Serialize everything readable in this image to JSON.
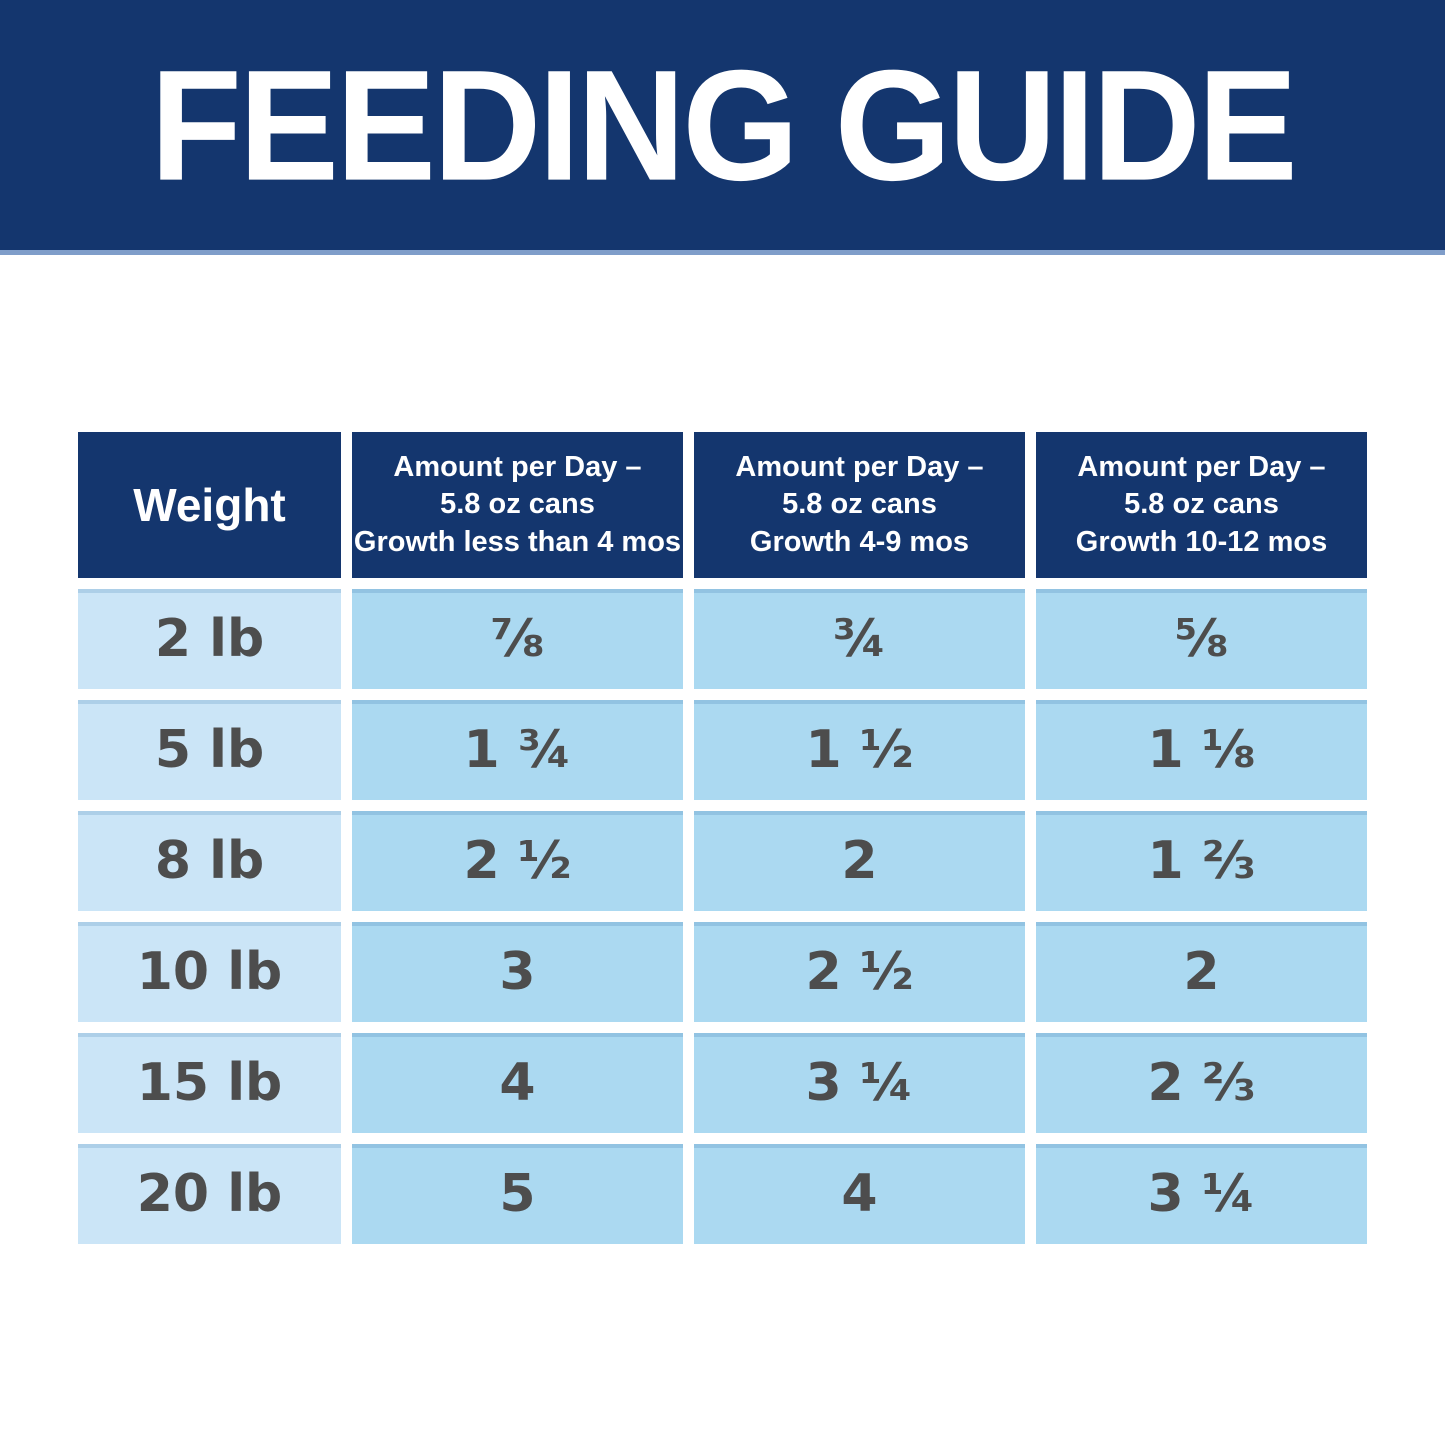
{
  "banner": {
    "title": "FEEDING GUIDE"
  },
  "colors": {
    "navy": "#14366E",
    "banner_edge": "#7F9DC9",
    "weight_cell_blue": "#CBE5F7",
    "value_cell_blue": "#ABD9F1",
    "cell_text_gray": "#4d4d4d",
    "header_text": "#ffffff",
    "background": "#ffffff"
  },
  "table": {
    "columns": [
      "Weight",
      "Amount per Day –\n5.8 oz cans\nGrowth less than 4 mos",
      "Amount per Day –\n5.8 oz cans\nGrowth 4-9 mos",
      "Amount per Day –\n5.8 oz cans\nGrowth 10-12 mos"
    ],
    "rows": [
      {
        "weight": "2 lb",
        "values": [
          "⅞",
          "¾",
          "⅝"
        ]
      },
      {
        "weight": "5 lb",
        "values": [
          "1 ¾",
          "1 ½",
          "1 ⅛"
        ]
      },
      {
        "weight": "8 lb",
        "values": [
          "2 ½",
          "2",
          "1 ⅔"
        ]
      },
      {
        "weight": "10 lb",
        "values": [
          "3",
          "2 ½",
          "2"
        ]
      },
      {
        "weight": "15 lb",
        "values": [
          "4",
          "3 ¼",
          "2 ⅔"
        ]
      },
      {
        "weight": "20 lb",
        "values": [
          "5",
          "4",
          "3 ¼"
        ]
      }
    ]
  },
  "chart_data": {
    "type": "table",
    "title": "FEEDING GUIDE",
    "columns": [
      "Weight",
      "Amount per Day – 5.8 oz cans, Growth less than 4 mos",
      "Amount per Day – 5.8 oz cans, Growth 4-9 mos",
      "Amount per Day – 5.8 oz cans, Growth 10-12 mos"
    ],
    "rows": [
      [
        "2 lb",
        "7/8",
        "3/4",
        "5/8"
      ],
      [
        "5 lb",
        "1 3/4",
        "1 1/2",
        "1 1/8"
      ],
      [
        "8 lb",
        "2 1/2",
        "2",
        "1 2/3"
      ],
      [
        "10 lb",
        "3",
        "2 1/2",
        "2"
      ],
      [
        "15 lb",
        "4",
        "3 1/4",
        "2 2/3"
      ],
      [
        "20 lb",
        "5",
        "4",
        "3 1/4"
      ]
    ],
    "units": "5.8 oz cans per day",
    "layout": "header row navy with white text; weight column light blue; value columns slightly darker light blue; white gaps between cells"
  }
}
